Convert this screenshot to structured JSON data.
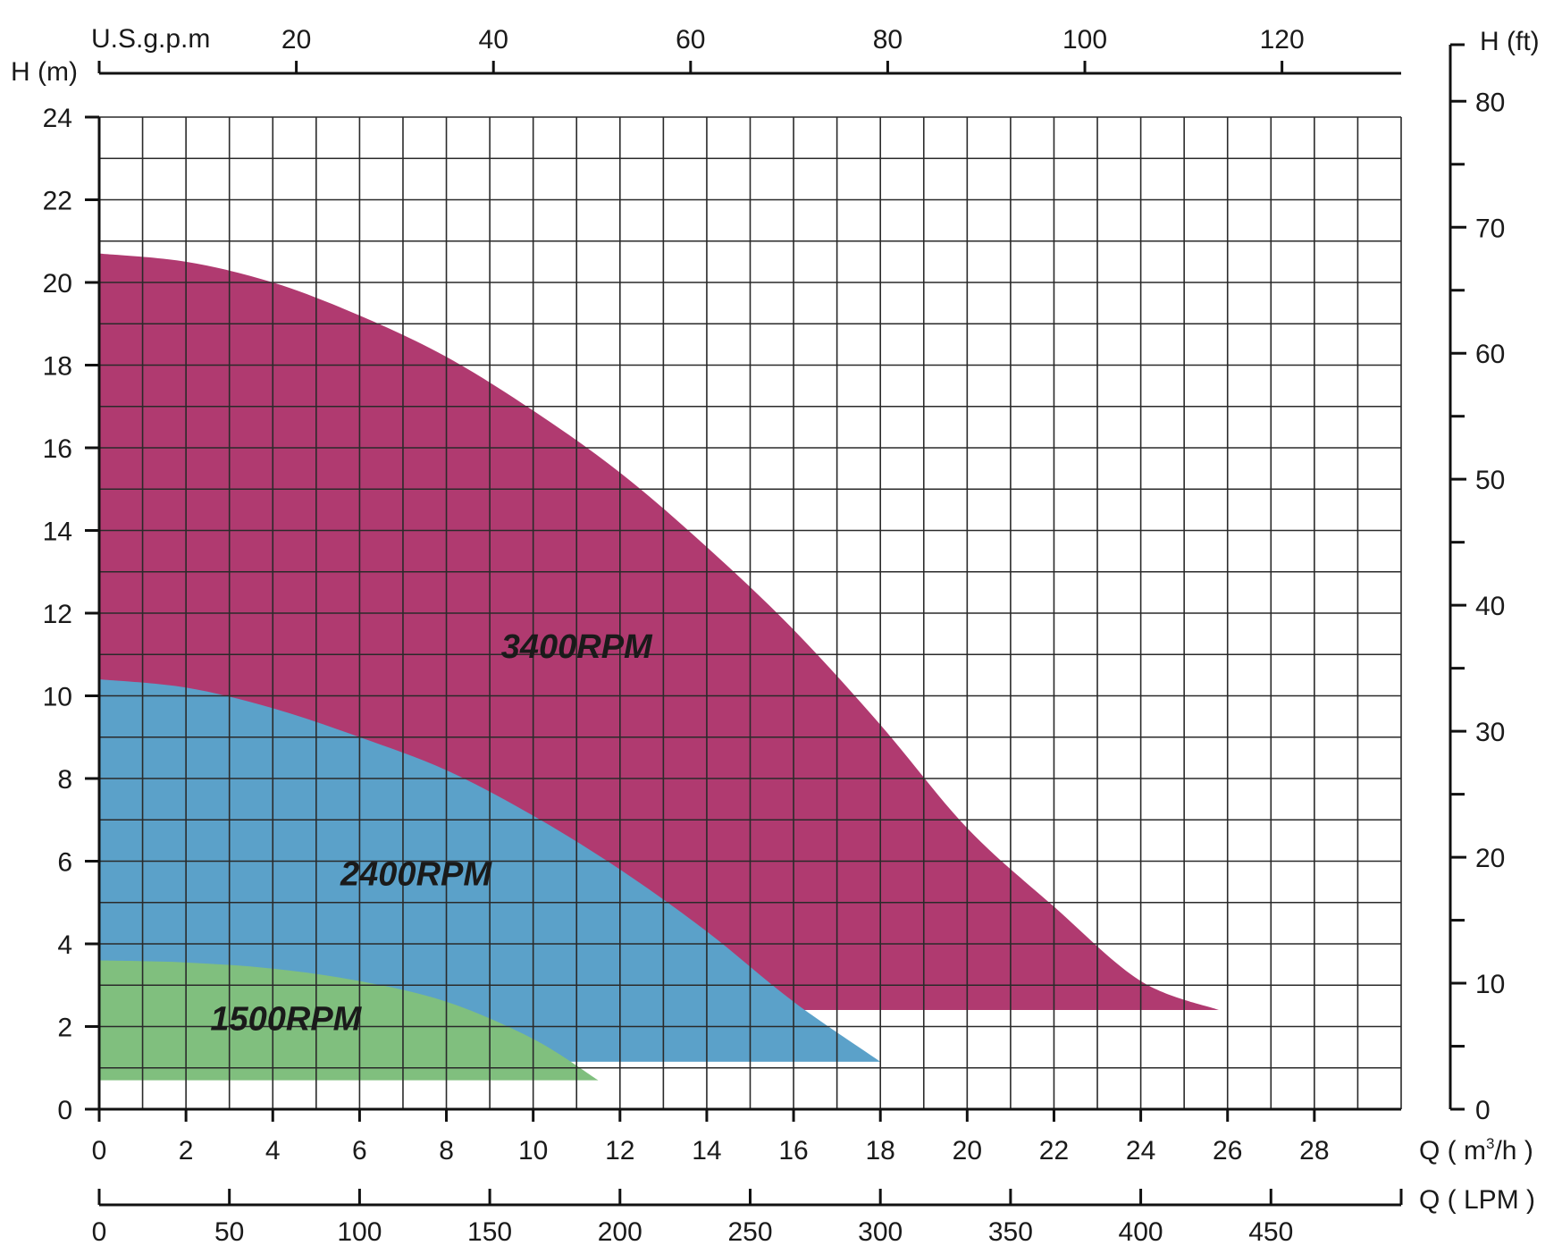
{
  "chart_data": {
    "type": "area",
    "title": "",
    "xlabel": "Q ( m³/h )",
    "x_unit_main": "Q ( m",
    "x_unit_sup": "3",
    "x_unit_tail": "/h )",
    "ylabel": "H (m)",
    "xlim": [
      0,
      30
    ],
    "ylim": [
      0,
      24
    ],
    "x_ticks": [
      0,
      2,
      4,
      6,
      8,
      10,
      12,
      14,
      16,
      18,
      20,
      22,
      24,
      26,
      28
    ],
    "y_ticks": [
      0,
      2,
      4,
      6,
      8,
      10,
      12,
      14,
      16,
      18,
      20,
      22,
      24
    ],
    "grid": true,
    "grid_x_step": 1,
    "grid_y_step": 1,
    "secondary_axes": {
      "top": {
        "label": "U.S.g.p.m",
        "ticks": [
          20,
          40,
          60,
          80,
          100,
          120
        ],
        "per_m3h": 4.403
      },
      "bottom": {
        "label": "Q ( LPM )",
        "ticks": [
          0,
          50,
          100,
          150,
          200,
          250,
          300,
          350,
          400,
          450
        ],
        "per_m3h": 16.667
      },
      "right": {
        "label": "H (ft)",
        "ticks": [
          0,
          10,
          20,
          30,
          40,
          50,
          60,
          70,
          80
        ],
        "per_m": 3.281
      }
    },
    "series": [
      {
        "name": "3400RPM",
        "color": "#b03a70",
        "base_y": 2.4,
        "x": [
          0,
          2,
          4,
          6,
          8,
          10,
          12,
          14,
          16,
          18,
          20,
          22,
          24,
          25.8
        ],
        "y": [
          20.7,
          20.5,
          20.0,
          19.2,
          18.2,
          16.9,
          15.4,
          13.6,
          11.6,
          9.3,
          6.8,
          4.9,
          3.1,
          2.4
        ]
      },
      {
        "name": "2400RPM",
        "color": "#5ba1c9",
        "base_y": 1.15,
        "x": [
          0,
          2,
          4,
          6,
          8,
          10,
          12,
          14,
          16,
          18
        ],
        "y": [
          10.4,
          10.2,
          9.7,
          9.0,
          8.2,
          7.1,
          5.8,
          4.3,
          2.6,
          1.15
        ]
      },
      {
        "name": "1500RPM",
        "color": "#80bf7e",
        "base_y": 0.7,
        "x": [
          0,
          2,
          4,
          6,
          8,
          10,
          11.5
        ],
        "y": [
          3.6,
          3.55,
          3.4,
          3.1,
          2.6,
          1.7,
          0.7
        ]
      }
    ]
  }
}
